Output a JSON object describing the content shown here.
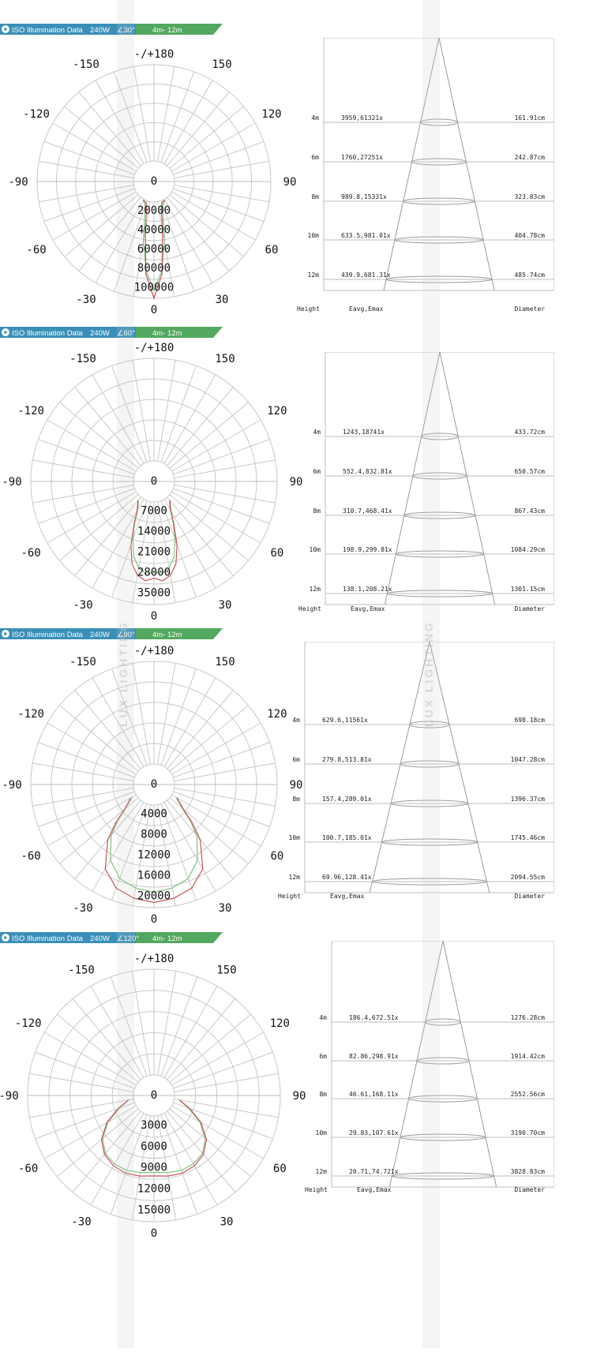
{
  "watermark": "LUX LIGHTING",
  "colors": {
    "banner_blue": "#3a8fb8",
    "banner_green": "#52a85e",
    "grid": "#c8c8c8",
    "curve_red": "#c8545a",
    "curve_green": "#7cc47c",
    "cone": "#9a9a9a"
  },
  "sections": [
    {
      "banner": {
        "icon": "play-circle-icon",
        "title": "ISO Illumination Data",
        "power": "240W",
        "angle": "∠30°",
        "range": "4m- 12m"
      },
      "polar": {
        "angle_labels": {
          "top": "-/+180",
          "n150": "-150",
          "p150": "150",
          "n120": "-120",
          "p120": "120",
          "n90": "-90",
          "p90": "90",
          "n60": "-60",
          "p60": "60",
          "n30": "-30",
          "p30": "30",
          "bottom": "0"
        },
        "radial_labels": [
          "0",
          "20000",
          "40000",
          "60000",
          "80000",
          "100000"
        ],
        "rmax": 100000,
        "curve_red": [
          [
            0,
            100000
          ],
          [
            5,
            75000
          ],
          [
            10,
            30000
          ],
          [
            15,
            8000
          ],
          [
            20,
            2500
          ],
          [
            30,
            800
          ]
        ],
        "curve_green": [
          [
            0,
            92000
          ],
          [
            5,
            72000
          ],
          [
            10,
            42000
          ],
          [
            15,
            16000
          ],
          [
            20,
            5000
          ],
          [
            30,
            1200
          ]
        ]
      },
      "cone": {
        "rows": [
          {
            "h": "4m",
            "e": "3959,61321x",
            "d": "161.91cm"
          },
          {
            "h": "6m",
            "e": "1760,27251x",
            "d": "242.87cm"
          },
          {
            "h": "8m",
            "e": "989.8,15331x",
            "d": "323.83cm"
          },
          {
            "h": "10m",
            "e": "633.5,981.01x",
            "d": "404.78cm"
          },
          {
            "h": "12m",
            "e": "439.9,681.31x",
            "d": "485.74cm"
          }
        ],
        "footer": {
          "height": "Height",
          "eavg": "Eavg,Emax",
          "diameter": "Diameter"
        }
      }
    },
    {
      "banner": {
        "icon": "play-circle-icon",
        "title": "ISO Illumination Data",
        "power": "240W",
        "angle": "∠60°",
        "range": "4m- 12m"
      },
      "polar": {
        "angle_labels": {
          "top": "-/+180",
          "n150": "-150",
          "p150": "150",
          "n120": "-120",
          "p120": "120",
          "n90": "-90",
          "p90": "90",
          "n60": "-60",
          "p60": "60",
          "n30": "-30",
          "p30": "30",
          "bottom": "0"
        },
        "radial_labels": [
          "0",
          "7000",
          "14000",
          "21000",
          "28000",
          "35000"
        ],
        "rmax": 35000,
        "curve_red": [
          [
            0,
            26000
          ],
          [
            5,
            27000
          ],
          [
            10,
            25500
          ],
          [
            15,
            22000
          ],
          [
            20,
            16000
          ],
          [
            25,
            9000
          ],
          [
            30,
            4500
          ],
          [
            40,
            1500
          ]
        ],
        "curve_green": [
          [
            0,
            24000
          ],
          [
            5,
            24500
          ],
          [
            10,
            23000
          ],
          [
            15,
            19500
          ],
          [
            20,
            14000
          ],
          [
            25,
            8500
          ],
          [
            30,
            4000
          ],
          [
            40,
            1200
          ]
        ]
      },
      "cone": {
        "rows": [
          {
            "h": "4m",
            "e": "1243,18741x",
            "d": "433.72cm"
          },
          {
            "h": "6m",
            "e": "552.4,832.81x",
            "d": "650.57cm"
          },
          {
            "h": "8m",
            "e": "310.7,468.41x",
            "d": "867.43cm"
          },
          {
            "h": "10m",
            "e": "198.9,299.81x",
            "d": "1084.29cm"
          },
          {
            "h": "12m",
            "e": "138.1,208.21x",
            "d": "1301.15cm"
          }
        ],
        "footer": {
          "height": "Height",
          "eavg": "Eavg,Emax",
          "diameter": "Diameter"
        }
      }
    },
    {
      "banner": {
        "icon": "play-circle-icon",
        "title": "ISO Illumination Data",
        "power": "240W",
        "angle": "∠90°",
        "range": "4m- 12m"
      },
      "polar": {
        "angle_labels": {
          "top": "-/+180",
          "n150": "-150",
          "p150": "150",
          "n120": "-120",
          "p120": "120",
          "n90": "-90",
          "p90": "90",
          "n60": "-60",
          "p60": "60",
          "n30": "-30",
          "p30": "30",
          "bottom": "0"
        },
        "radial_labels": [
          "0",
          "4000",
          "8000",
          "12000",
          "16000",
          "20000"
        ],
        "rmax": 20000,
        "curve_red": [
          [
            0,
            19000
          ],
          [
            10,
            18500
          ],
          [
            20,
            17500
          ],
          [
            30,
            15000
          ],
          [
            40,
            10000
          ],
          [
            45,
            6500
          ],
          [
            50,
            3500
          ],
          [
            60,
            1200
          ]
        ],
        "curve_green": [
          [
            0,
            17000
          ],
          [
            10,
            16500
          ],
          [
            20,
            15500
          ],
          [
            30,
            13000
          ],
          [
            40,
            9000
          ],
          [
            45,
            6000
          ],
          [
            50,
            3200
          ],
          [
            60,
            1000
          ]
        ]
      },
      "cone": {
        "rows": [
          {
            "h": "4m",
            "e": "629.6,11561x",
            "d": "698.18cm"
          },
          {
            "h": "6m",
            "e": "279.8,513.81x",
            "d": "1047.28cm"
          },
          {
            "h": "8m",
            "e": "157.4,289.01x",
            "d": "1396.37cm"
          },
          {
            "h": "10m",
            "e": "100.7,185.01x",
            "d": "1745.46cm"
          },
          {
            "h": "12m",
            "e": "69.96,128.41x",
            "d": "2094.55cm"
          }
        ],
        "footer": {
          "height": "Height",
          "eavg": "Eavg,Emax",
          "diameter": "Diameter"
        }
      }
    },
    {
      "banner": {
        "icon": "play-circle-icon",
        "title": "ISO Illumination Data",
        "power": "240W",
        "angle": "∠120°",
        "range": "4m- 12m"
      },
      "polar": {
        "angle_labels": {
          "top": "-/+180",
          "n150": "-150",
          "p150": "150",
          "n120": "-120",
          "p120": "120",
          "n90": "-90",
          "p90": "90",
          "n60": "-60",
          "p60": "60",
          "n30": "-30",
          "p30": "30",
          "bottom": "0"
        },
        "radial_labels": [
          "0",
          "3000",
          "6000",
          "9000",
          "12000",
          "15000"
        ],
        "rmax": 15000,
        "curve_red": [
          [
            0,
            8500
          ],
          [
            10,
            8700
          ],
          [
            20,
            8800
          ],
          [
            30,
            8600
          ],
          [
            40,
            8000
          ],
          [
            50,
            6800
          ],
          [
            60,
            4800
          ],
          [
            70,
            2500
          ],
          [
            80,
            800
          ]
        ],
        "curve_green": [
          [
            0,
            8000
          ],
          [
            10,
            8200
          ],
          [
            20,
            8400
          ],
          [
            30,
            8300
          ],
          [
            40,
            7800
          ],
          [
            50,
            6600
          ],
          [
            60,
            4600
          ],
          [
            70,
            2300
          ],
          [
            80,
            700
          ]
        ]
      },
      "cone": {
        "rows": [
          {
            "h": "4m",
            "e": "186.4,672.51x",
            "d": "1276.28cm"
          },
          {
            "h": "6m",
            "e": "82.86,298.91x",
            "d": "1914.42cm"
          },
          {
            "h": "8m",
            "e": "46.61,168.11x",
            "d": "2552.56cm"
          },
          {
            "h": "10m",
            "e": "29.83,107.61x",
            "d": "3190.70cm"
          },
          {
            "h": "12m",
            "e": "20.71,74.721x",
            "d": "3828.83cm"
          }
        ],
        "footer": {
          "height": "Height",
          "eavg": "Eavg,Emax",
          "diameter": "Diameter"
        }
      }
    }
  ],
  "chart_data": [
    {
      "type": "polar-line",
      "title": "",
      "series": [
        {
          "name": "",
          "values_deg": [
            0,
            5,
            10,
            15,
            20,
            30
          ],
          "values": [
            100000,
            75000,
            30000,
            8000,
            2500,
            800
          ]
        },
        {
          "name": "",
          "values_deg": [
            0,
            5,
            10,
            15,
            20,
            30
          ],
          "values": [
            92000,
            72000,
            42000,
            16000,
            5000,
            1200
          ]
        }
      ],
      "radial_ticks": [
        0,
        20000,
        40000,
        60000,
        80000,
        100000
      ],
      "angle_ticks": [
        -180,
        -150,
        -120,
        -90,
        -60,
        -30,
        0,
        30,
        60,
        90,
        120,
        150,
        180
      ]
    },
    {
      "type": "table",
      "columns": [
        "Height",
        "Eavg,Emax",
        "Diameter"
      ],
      "rows": [
        [
          "4m",
          "3959,61321x",
          "161.91cm"
        ],
        [
          "6m",
          "1760,27251x",
          "242.87cm"
        ],
        [
          "8m",
          "989.8,15331x",
          "323.83cm"
        ],
        [
          "10m",
          "633.5,981.01x",
          "404.78cm"
        ],
        [
          "12m",
          "439.9,681.31x",
          "485.74cm"
        ]
      ]
    },
    {
      "type": "polar-line",
      "title": "",
      "series": [
        {
          "name": "",
          "values_deg": [
            0,
            5,
            10,
            15,
            20,
            25,
            30,
            40
          ],
          "values": [
            26000,
            27000,
            25500,
            22000,
            16000,
            9000,
            4500,
            1500
          ]
        },
        {
          "name": "",
          "values_deg": [
            0,
            5,
            10,
            15,
            20,
            25,
            30,
            40
          ],
          "values": [
            24000,
            24500,
            23000,
            19500,
            14000,
            8500,
            4000,
            1200
          ]
        }
      ],
      "radial_ticks": [
        0,
        7000,
        14000,
        21000,
        28000,
        35000
      ],
      "angle_ticks": [
        -180,
        -150,
        -120,
        -90,
        -60,
        -30,
        0,
        30,
        60,
        90,
        120,
        150,
        180
      ]
    },
    {
      "type": "table",
      "columns": [
        "Height",
        "Eavg,Emax",
        "Diameter"
      ],
      "rows": [
        [
          "4m",
          "1243,18741x",
          "433.72cm"
        ],
        [
          "6m",
          "552.4,832.81x",
          "650.57cm"
        ],
        [
          "8m",
          "310.7,468.41x",
          "867.43cm"
        ],
        [
          "10m",
          "198.9,299.81x",
          "1084.29cm"
        ],
        [
          "12m",
          "138.1,208.21x",
          "1301.15cm"
        ]
      ]
    },
    {
      "type": "polar-line",
      "title": "",
      "series": [
        {
          "name": "",
          "values_deg": [
            0,
            10,
            20,
            30,
            40,
            45,
            50,
            60
          ],
          "values": [
            19000,
            18500,
            17500,
            15000,
            10000,
            6500,
            3500,
            1200
          ]
        },
        {
          "name": "",
          "values_deg": [
            0,
            10,
            20,
            30,
            40,
            45,
            50,
            60
          ],
          "values": [
            17000,
            16500,
            15500,
            13000,
            9000,
            6000,
            3200,
            1000
          ]
        }
      ],
      "radial_ticks": [
        0,
        4000,
        8000,
        12000,
        16000,
        20000
      ],
      "angle_ticks": [
        -180,
        -150,
        -120,
        -90,
        -60,
        -30,
        0,
        30,
        60,
        90,
        120,
        150,
        180
      ]
    },
    {
      "type": "table",
      "columns": [
        "Height",
        "Eavg,Emax",
        "Diameter"
      ],
      "rows": [
        [
          "4m",
          "629.6,11561x",
          "698.18cm"
        ],
        [
          "6m",
          "279.8,513.81x",
          "1047.28cm"
        ],
        [
          "8m",
          "157.4,289.01x",
          "1396.37cm"
        ],
        [
          "10m",
          "100.7,185.01x",
          "1745.46cm"
        ],
        [
          "12m",
          "69.96,128.41x",
          "2094.55cm"
        ]
      ]
    },
    {
      "type": "polar-line",
      "title": "",
      "series": [
        {
          "name": "",
          "values_deg": [
            0,
            10,
            20,
            30,
            40,
            50,
            60,
            70,
            80
          ],
          "values": [
            8500,
            8700,
            8800,
            8600,
            8000,
            6800,
            4800,
            2500,
            800
          ]
        },
        {
          "name": "",
          "values_deg": [
            0,
            10,
            20,
            30,
            40,
            50,
            60,
            70,
            80
          ],
          "values": [
            8000,
            8200,
            8400,
            8300,
            7800,
            6600,
            4600,
            2300,
            700
          ]
        }
      ],
      "radial_ticks": [
        0,
        3000,
        6000,
        9000,
        12000,
        15000
      ],
      "angle_ticks": [
        -180,
        -150,
        -120,
        -90,
        -60,
        -30,
        0,
        30,
        60,
        90,
        120,
        150,
        180
      ]
    },
    {
      "type": "table",
      "columns": [
        "Height",
        "Eavg,Emax",
        "Diameter"
      ],
      "rows": [
        [
          "4m",
          "186.4,672.51x",
          "1276.28cm"
        ],
        [
          "6m",
          "82.86,298.91x",
          "1914.42cm"
        ],
        [
          "8m",
          "46.61,168.11x",
          "2552.56cm"
        ],
        [
          "10m",
          "29.83,107.61x",
          "3190.70cm"
        ],
        [
          "12m",
          "20.71,74.721x",
          "3828.83cm"
        ]
      ]
    }
  ]
}
